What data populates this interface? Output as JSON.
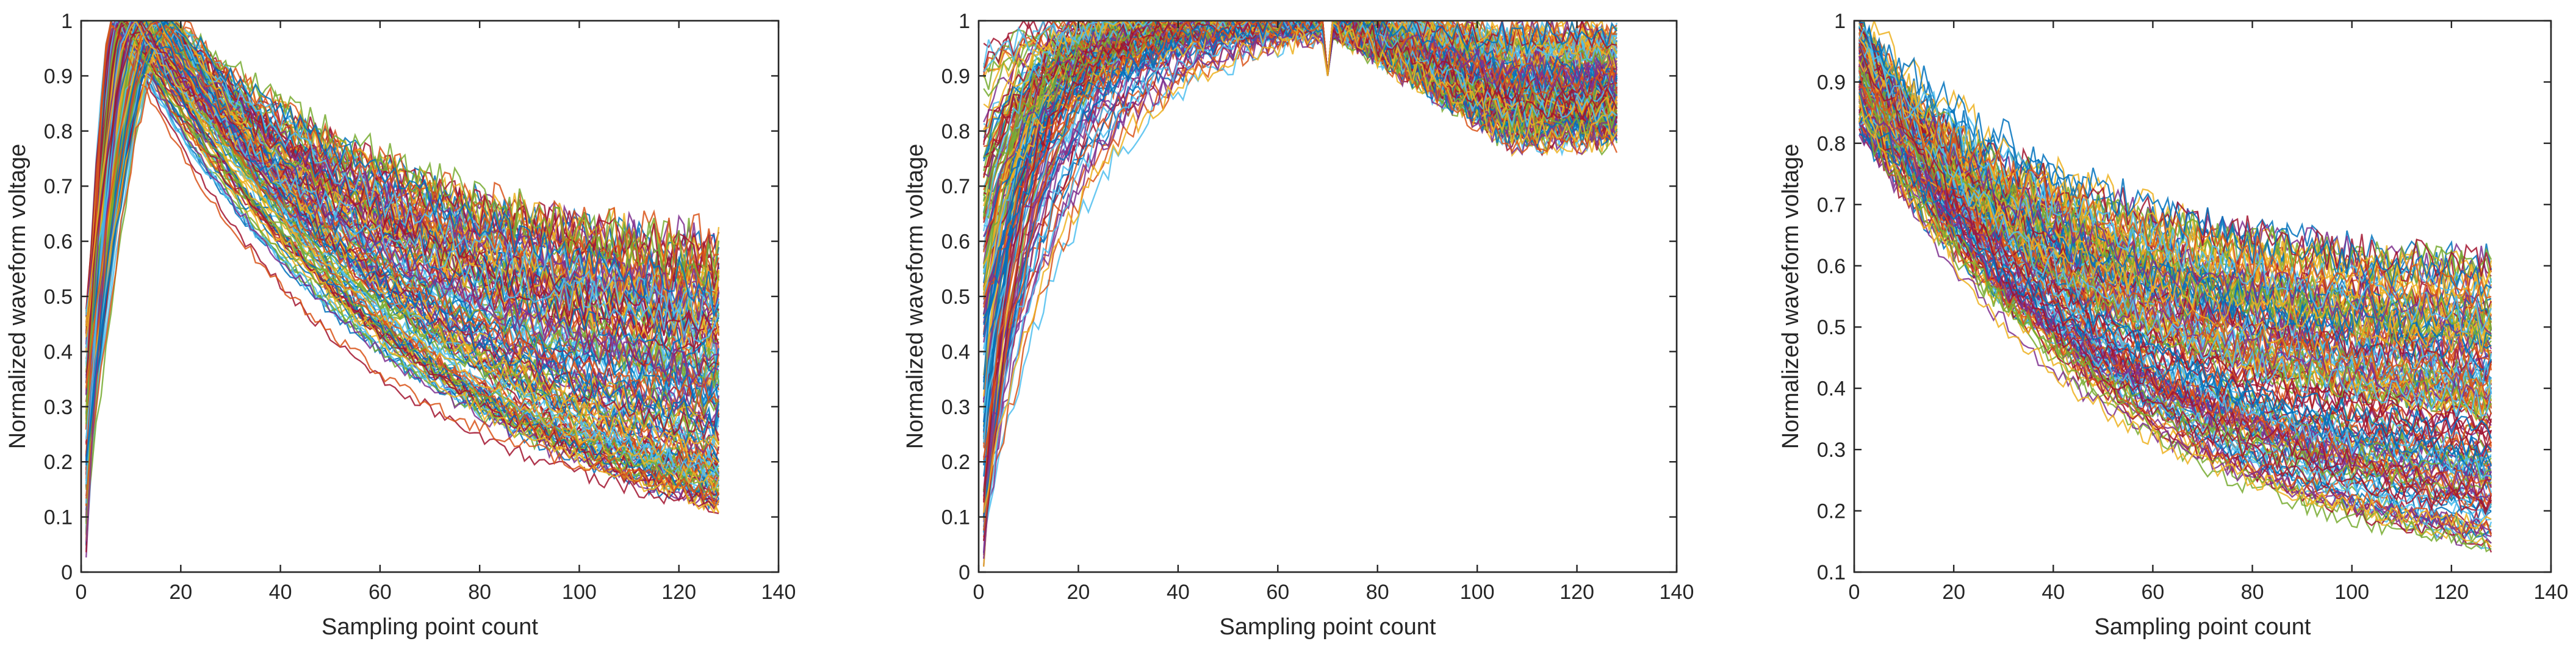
{
  "colors": {
    "axis": "#262626",
    "series_palette": [
      "#0072BD",
      "#D95319",
      "#EDB120",
      "#7E2F8E",
      "#77AC30",
      "#4DBEEE",
      "#A2142F"
    ]
  },
  "chart_data": [
    {
      "type": "line",
      "xlabel": "Sampling point count",
      "ylabel": "Normalized waveform voltage",
      "xlim": [
        0,
        140
      ],
      "ylim": [
        0,
        1
      ],
      "xticks": [
        "0",
        "20",
        "40",
        "60",
        "80",
        "100",
        "120",
        "140"
      ],
      "yticks": [
        "0",
        "0.1",
        "0.2",
        "0.3",
        "0.4",
        "0.5",
        "0.6",
        "0.7",
        "0.8",
        "0.9",
        "1"
      ],
      "grid": false,
      "legend": "none",
      "x_count": 128,
      "series_count": "many (hundreds of overlaid waveforms)",
      "shape": "steep rise from near 0 to peak ~1 at x≈10-20, then decay to ~0.12-0.6 at x=128",
      "representative_series": [
        {
          "x": [
            1,
            5,
            10,
            15,
            20,
            30,
            40,
            60,
            80,
            100,
            128
          ],
          "y": [
            0.05,
            0.75,
            0.95,
            1.0,
            0.96,
            0.85,
            0.7,
            0.45,
            0.3,
            0.21,
            0.12
          ]
        },
        {
          "x": [
            1,
            5,
            10,
            15,
            20,
            30,
            40,
            60,
            80,
            100,
            128
          ],
          "y": [
            0.3,
            0.9,
            1.0,
            0.98,
            0.93,
            0.85,
            0.76,
            0.58,
            0.47,
            0.4,
            0.33
          ]
        },
        {
          "x": [
            1,
            5,
            10,
            15,
            20,
            30,
            40,
            60,
            80,
            100,
            128
          ],
          "y": [
            0.5,
            0.95,
            1.0,
            0.97,
            0.94,
            0.88,
            0.8,
            0.68,
            0.6,
            0.55,
            0.5
          ]
        }
      ]
    },
    {
      "type": "line",
      "xlabel": "Sampling point count",
      "ylabel": "Normalized waveform voltage",
      "xlim": [
        0,
        140
      ],
      "ylim": [
        0,
        1
      ],
      "xticks": [
        "0",
        "20",
        "40",
        "60",
        "80",
        "100",
        "120",
        "140"
      ],
      "yticks": [
        "0",
        "0.1",
        "0.2",
        "0.3",
        "0.4",
        "0.5",
        "0.6",
        "0.7",
        "0.8",
        "0.9",
        "1"
      ],
      "grid": false,
      "legend": "none",
      "x_count": 128,
      "series_count": "many (hundreds of overlaid waveforms)",
      "shape": "sigmoid-like rise from 0.02-0.95 at x=0 to ~1 near x=70 (small notch at x≈70), then flat ~0.8-1.0 to x=128",
      "representative_series": [
        {
          "x": [
            1,
            10,
            20,
            30,
            40,
            50,
            60,
            70,
            80,
            100,
            128
          ],
          "y": [
            0.05,
            0.1,
            0.3,
            0.55,
            0.75,
            0.88,
            0.96,
            1.0,
            0.92,
            0.88,
            0.82
          ]
        },
        {
          "x": [
            1,
            10,
            20,
            30,
            40,
            50,
            60,
            70,
            80,
            100,
            128
          ],
          "y": [
            0.5,
            0.7,
            0.82,
            0.9,
            0.95,
            0.98,
            0.99,
            1.0,
            0.95,
            0.92,
            0.9
          ]
        },
        {
          "x": [
            1,
            10,
            20,
            30,
            40,
            50,
            60,
            70,
            80,
            100,
            128
          ],
          "y": [
            0.9,
            0.94,
            0.96,
            0.98,
            0.99,
            1.0,
            1.0,
            1.0,
            0.97,
            0.95,
            0.93
          ]
        }
      ]
    },
    {
      "type": "line",
      "xlabel": "Sampling point count",
      "ylabel": "Normalized waveform voltage",
      "xlim": [
        0,
        140
      ],
      "ylim": [
        0.1,
        1
      ],
      "xticks": [
        "0",
        "20",
        "40",
        "60",
        "80",
        "100",
        "120",
        "140"
      ],
      "yticks": [
        "0.1",
        "0.2",
        "0.3",
        "0.4",
        "0.5",
        "0.6",
        "0.7",
        "0.8",
        "0.9",
        "1"
      ],
      "grid": false,
      "legend": "none",
      "x_count": 128,
      "series_count": "many (hundreds of overlaid waveforms)",
      "shape": "monotonic decay from ~0.85-1.0 at x=0 to ~0.14-0.6 at x=128",
      "representative_series": [
        {
          "x": [
            1,
            10,
            20,
            30,
            40,
            60,
            80,
            100,
            128
          ],
          "y": [
            0.85,
            0.72,
            0.6,
            0.5,
            0.42,
            0.3,
            0.23,
            0.18,
            0.14
          ]
        },
        {
          "x": [
            1,
            10,
            20,
            30,
            40,
            60,
            80,
            100,
            128
          ],
          "y": [
            0.95,
            0.88,
            0.8,
            0.72,
            0.65,
            0.52,
            0.43,
            0.37,
            0.32
          ]
        },
        {
          "x": [
            1,
            10,
            20,
            30,
            40,
            60,
            80,
            100,
            128
          ],
          "y": [
            1.0,
            0.95,
            0.88,
            0.82,
            0.76,
            0.68,
            0.63,
            0.6,
            0.58
          ]
        }
      ]
    }
  ]
}
